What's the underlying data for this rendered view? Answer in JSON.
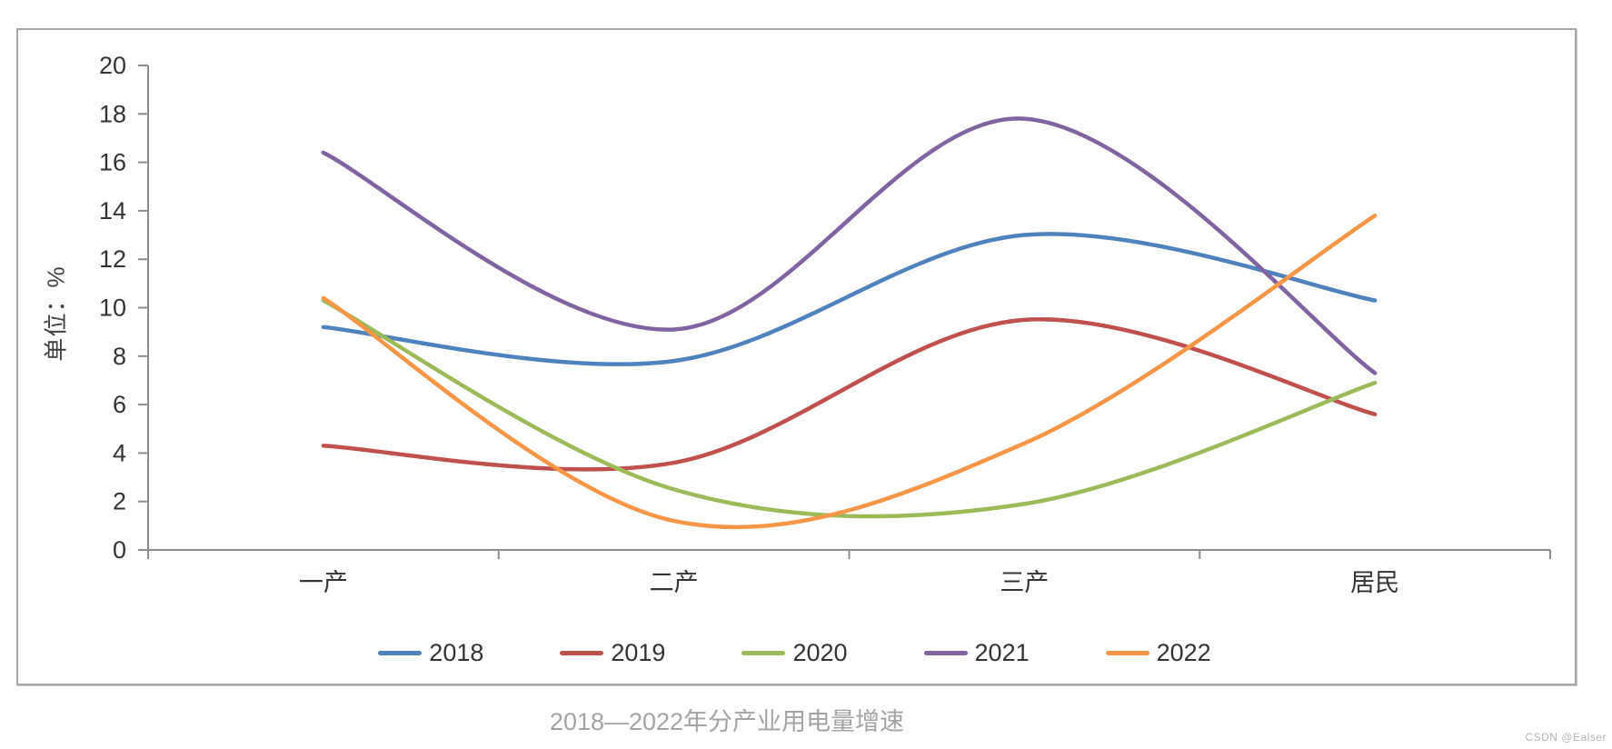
{
  "page": {
    "caption": "2018—2022年分产业用电量增速",
    "watermark": "CSDN @Ealser"
  },
  "chart_data": {
    "type": "line",
    "title": "2018—2022年分产业用电量增速",
    "ylabel": "单位：%",
    "xlabel": "",
    "categories": [
      "一产",
      "二产",
      "三产",
      "居民"
    ],
    "series": [
      {
        "name": "2018",
        "color": "#4F81BD",
        "values": [
          9.2,
          7.8,
          13.0,
          10.3
        ]
      },
      {
        "name": "2019",
        "color": "#C0504D",
        "values": [
          4.3,
          3.6,
          9.5,
          5.6
        ]
      },
      {
        "name": "2020",
        "color": "#9BBB59",
        "values": [
          10.3,
          2.5,
          1.9,
          6.9
        ]
      },
      {
        "name": "2021",
        "color": "#8064A2",
        "values": [
          16.4,
          9.1,
          17.8,
          7.3
        ]
      },
      {
        "name": "2022",
        "color": "#F79646",
        "values": [
          10.4,
          1.2,
          4.4,
          13.8
        ]
      }
    ],
    "ylim": [
      0,
      20
    ],
    "ytick_step": 2,
    "grid": false,
    "legend_position": "bottom",
    "line_smoothing": true,
    "axis_color": "#8c8c8c",
    "tick_label_color": "#333333"
  }
}
